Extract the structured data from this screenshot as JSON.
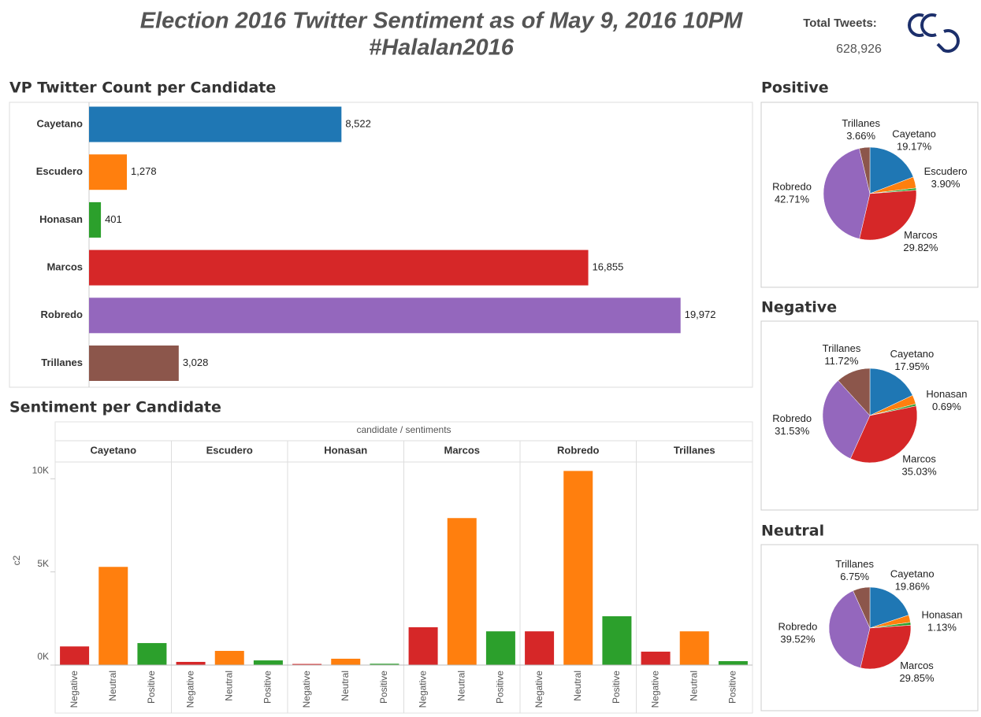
{
  "header": {
    "title": [
      "Election 2016 Twitter Sentiment as of May 9, 2016 10PM",
      "#Halalan2016"
    ],
    "total_label": "Total Tweets:",
    "total_value": "628,926"
  },
  "chart_data": [
    {
      "type": "hbar",
      "title": "VP Twitter Count per Candidate",
      "categories": [
        "Cayetano",
        "Escudero",
        "Honasan",
        "Marcos",
        "Robredo",
        "Trillanes"
      ],
      "values": [
        8522,
        1278,
        401,
        16855,
        19972,
        3028
      ],
      "value_labels": [
        "8,522",
        "1,278",
        "401",
        "16,855",
        "19,972",
        "3,028"
      ],
      "colors": [
        "#1f77b4",
        "#ff7f0e",
        "#2ca02c",
        "#d62728",
        "#9467bd",
        "#8c564b"
      ],
      "xlim": [
        0,
        22400
      ]
    },
    {
      "type": "grouped_bar",
      "title": "Sentiment per Candidate",
      "header_label": "candidate  /  sentiments",
      "y_label": "c2",
      "categories": [
        "Cayetano",
        "Escudero",
        "Honasan",
        "Marcos",
        "Robredo",
        "Trillanes"
      ],
      "series": [
        {
          "name": "Negative",
          "color": "#d62728",
          "values": [
            1000,
            170,
            60,
            2030,
            1810,
            720
          ]
        },
        {
          "name": "Neutral",
          "color": "#ff7f0e",
          "values": [
            5270,
            760,
            340,
            7890,
            10420,
            1810
          ]
        },
        {
          "name": "Positive",
          "color": "#2ca02c",
          "values": [
            1180,
            250,
            70,
            1810,
            2620,
            210
          ]
        }
      ],
      "ylim": [
        0,
        10900
      ],
      "yticks": [
        {
          "value": 0,
          "label": "0K"
        },
        {
          "value": 5000,
          "label": "5K"
        },
        {
          "value": 10000,
          "label": "10K"
        }
      ]
    },
    {
      "type": "pie",
      "title": "Positive",
      "categories": [
        "Cayetano",
        "Escudero",
        null,
        "Marcos",
        "Robredo",
        "Trillanes"
      ],
      "values": [
        19.17,
        3.9,
        0.74,
        29.82,
        42.71,
        3.66
      ],
      "value_labels": [
        "19.17%",
        "3.90%",
        null,
        "29.82%",
        "42.71%",
        "3.66%"
      ],
      "colors": [
        "#1f77b4",
        "#ff7f0e",
        "#2ca02c",
        "#d62728",
        "#9467bd",
        "#8c564b"
      ]
    },
    {
      "type": "pie",
      "title": "Negative",
      "categories": [
        "Cayetano",
        null,
        "Honasan",
        "Marcos",
        "Robredo",
        "Trillanes"
      ],
      "values": [
        17.95,
        3.08,
        0.69,
        35.03,
        31.53,
        11.72
      ],
      "value_labels": [
        "17.95%",
        null,
        "0.69%",
        "35.03%",
        "31.53%",
        "11.72%"
      ],
      "colors": [
        "#1f77b4",
        "#ff7f0e",
        "#2ca02c",
        "#d62728",
        "#9467bd",
        "#8c564b"
      ]
    },
    {
      "type": "pie",
      "title": "Neutral",
      "categories": [
        "Cayetano",
        null,
        "Honasan",
        "Marcos",
        "Robredo",
        "Trillanes"
      ],
      "values": [
        19.86,
        2.89,
        1.13,
        29.85,
        39.52,
        6.75
      ],
      "value_labels": [
        "19.86%",
        null,
        "1.13%",
        "29.85%",
        "39.52%",
        "6.75%"
      ],
      "colors": [
        "#1f77b4",
        "#ff7f0e",
        "#2ca02c",
        "#d62728",
        "#9467bd",
        "#8c564b"
      ]
    }
  ]
}
